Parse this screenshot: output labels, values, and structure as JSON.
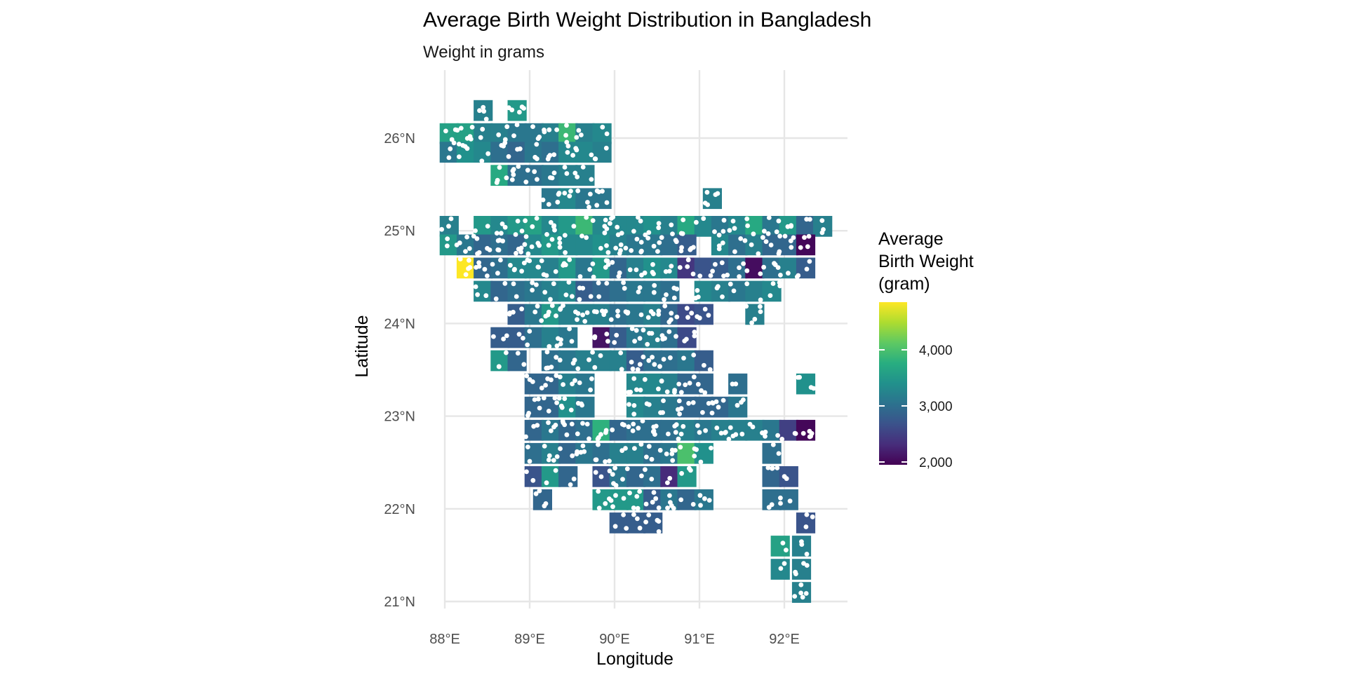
{
  "chart_data": {
    "type": "heatmap",
    "title": "Average Birth Weight Distribution in Bangladesh",
    "subtitle": "Weight in grams",
    "xlabel": "Longitude",
    "ylabel": "Latitude",
    "xlim": [
      88,
      92.6
    ],
    "ylim": [
      21,
      26.5
    ],
    "x_ticks": [
      {
        "value": 88,
        "label": "88°E"
      },
      {
        "value": 89,
        "label": "89°E"
      },
      {
        "value": 90,
        "label": "90°E"
      },
      {
        "value": 91,
        "label": "91°E"
      },
      {
        "value": 92,
        "label": "92°E"
      }
    ],
    "y_ticks": [
      {
        "value": 21,
        "label": "21°N"
      },
      {
        "value": 22,
        "label": "22°N"
      },
      {
        "value": 23,
        "label": "23°N"
      },
      {
        "value": 24,
        "label": "24°N"
      },
      {
        "value": 25,
        "label": "25°N"
      },
      {
        "value": 26,
        "label": "26°N"
      }
    ],
    "grid": true,
    "cell_size_deg": 0.22,
    "colorscale": "viridis",
    "color_range": [
      1950,
      4850
    ],
    "legend": {
      "title": [
        "Average",
        "Birth Weight",
        "(gram)"
      ],
      "ticks": [
        {
          "value": 2000,
          "label": "2,000"
        },
        {
          "value": 3000,
          "label": "3,000"
        },
        {
          "value": 4000,
          "label": "4,000"
        }
      ],
      "position": "right"
    },
    "points_color": "#ffffff",
    "cells": [
      [
        88.05,
        26.05,
        3600
      ],
      [
        88.25,
        26.05,
        3600
      ],
      [
        88.45,
        26.05,
        3200
      ],
      [
        88.65,
        26.05,
        3200
      ],
      [
        88.85,
        26.05,
        3100
      ],
      [
        89.05,
        26.05,
        3100
      ],
      [
        89.25,
        26.05,
        3200
      ],
      [
        89.45,
        26.05,
        3900
      ],
      [
        89.65,
        26.05,
        3200
      ],
      [
        89.85,
        26.05,
        3300
      ],
      [
        88.45,
        26.3,
        3200
      ],
      [
        88.85,
        26.3,
        3500
      ],
      [
        88.05,
        25.85,
        3100
      ],
      [
        88.25,
        25.85,
        3400
      ],
      [
        88.45,
        25.85,
        3300
      ],
      [
        88.65,
        25.85,
        3000
      ],
      [
        88.85,
        25.85,
        2900
      ],
      [
        89.05,
        25.85,
        3100
      ],
      [
        89.25,
        25.85,
        3000
      ],
      [
        89.45,
        25.85,
        3300
      ],
      [
        89.65,
        25.85,
        3300
      ],
      [
        89.85,
        25.85,
        3200
      ],
      [
        88.65,
        25.6,
        3700
      ],
      [
        88.85,
        25.6,
        3000
      ],
      [
        89.05,
        25.6,
        3000
      ],
      [
        89.25,
        25.6,
        3100
      ],
      [
        89.45,
        25.6,
        3200
      ],
      [
        89.65,
        25.6,
        3200
      ],
      [
        89.25,
        25.35,
        3100
      ],
      [
        89.45,
        25.35,
        3300
      ],
      [
        89.65,
        25.35,
        3100
      ],
      [
        89.85,
        25.35,
        3100
      ],
      [
        91.15,
        25.35,
        3200
      ],
      [
        88.05,
        25.05,
        3200
      ],
      [
        88.45,
        25.05,
        3500
      ],
      [
        88.65,
        25.05,
        3300
      ],
      [
        88.85,
        25.05,
        3500
      ],
      [
        89.05,
        25.05,
        3600
      ],
      [
        89.25,
        25.05,
        3300
      ],
      [
        89.45,
        25.05,
        3500
      ],
      [
        89.65,
        25.05,
        3900
      ],
      [
        89.85,
        25.05,
        3300
      ],
      [
        90.05,
        25.05,
        3300
      ],
      [
        90.25,
        25.05,
        3300
      ],
      [
        90.45,
        25.05,
        3400
      ],
      [
        90.65,
        25.05,
        3200
      ],
      [
        90.85,
        25.05,
        3700
      ],
      [
        91.05,
        25.05,
        3300
      ],
      [
        91.25,
        25.05,
        3100
      ],
      [
        91.45,
        25.05,
        3300
      ],
      [
        91.65,
        25.05,
        3700
      ],
      [
        91.85,
        25.05,
        3100
      ],
      [
        92.05,
        25.05,
        3500
      ],
      [
        92.25,
        25.05,
        2900
      ],
      [
        92.45,
        25.05,
        3200
      ],
      [
        88.05,
        24.85,
        3500
      ],
      [
        88.25,
        24.85,
        3100
      ],
      [
        88.45,
        24.85,
        2900
      ],
      [
        88.65,
        24.85,
        3000
      ],
      [
        88.85,
        24.85,
        2900
      ],
      [
        89.05,
        24.85,
        3300
      ],
      [
        89.25,
        24.85,
        3500
      ],
      [
        89.45,
        24.85,
        3300
      ],
      [
        89.65,
        24.85,
        3300
      ],
      [
        89.85,
        24.85,
        3400
      ],
      [
        90.05,
        24.85,
        3200
      ],
      [
        90.25,
        24.85,
        3100
      ],
      [
        90.45,
        24.85,
        3100
      ],
      [
        90.65,
        24.85,
        3000
      ],
      [
        90.85,
        24.85,
        2800
      ],
      [
        91.25,
        24.85,
        3300
      ],
      [
        91.45,
        24.85,
        3000
      ],
      [
        91.65,
        24.85,
        3200
      ],
      [
        91.85,
        24.85,
        2900
      ],
      [
        92.05,
        24.85,
        2900
      ],
      [
        92.25,
        24.85,
        2000
      ],
      [
        88.25,
        24.6,
        4850
      ],
      [
        88.45,
        24.6,
        2900
      ],
      [
        88.65,
        24.6,
        3000
      ],
      [
        88.85,
        24.6,
        3300
      ],
      [
        89.05,
        24.6,
        3300
      ],
      [
        89.25,
        24.6,
        3200
      ],
      [
        89.45,
        24.6,
        3500
      ],
      [
        89.65,
        24.6,
        3100
      ],
      [
        89.85,
        24.6,
        3500
      ],
      [
        90.05,
        24.6,
        2900
      ],
      [
        90.25,
        24.6,
        3200
      ],
      [
        90.45,
        24.6,
        3400
      ],
      [
        90.65,
        24.6,
        3300
      ],
      [
        90.85,
        24.6,
        2400
      ],
      [
        91.05,
        24.6,
        2700
      ],
      [
        91.25,
        24.6,
        2800
      ],
      [
        91.45,
        24.6,
        3000
      ],
      [
        91.65,
        24.6,
        2050
      ],
      [
        91.85,
        24.6,
        3000
      ],
      [
        92.05,
        24.6,
        3200
      ],
      [
        92.25,
        24.6,
        2800
      ],
      [
        88.45,
        24.35,
        3300
      ],
      [
        88.65,
        24.35,
        2900
      ],
      [
        88.85,
        24.35,
        3000
      ],
      [
        89.05,
        24.35,
        3100
      ],
      [
        89.25,
        24.35,
        3200
      ],
      [
        89.45,
        24.35,
        3300
      ],
      [
        89.65,
        24.35,
        2800
      ],
      [
        89.85,
        24.35,
        2900
      ],
      [
        90.05,
        24.35,
        3000
      ],
      [
        90.25,
        24.35,
        3100
      ],
      [
        90.45,
        24.35,
        3100
      ],
      [
        90.65,
        24.35,
        3000
      ],
      [
        91.05,
        24.35,
        3300
      ],
      [
        91.25,
        24.35,
        3200
      ],
      [
        91.45,
        24.35,
        3100
      ],
      [
        91.65,
        24.35,
        3200
      ],
      [
        91.85,
        24.35,
        3300
      ],
      [
        88.85,
        24.1,
        2800
      ],
      [
        89.05,
        24.1,
        3100
      ],
      [
        89.25,
        24.1,
        3500
      ],
      [
        89.45,
        24.1,
        3200
      ],
      [
        89.65,
        24.1,
        3200
      ],
      [
        89.85,
        24.1,
        3200
      ],
      [
        90.05,
        24.1,
        3000
      ],
      [
        90.25,
        24.1,
        3100
      ],
      [
        90.45,
        24.1,
        3200
      ],
      [
        90.65,
        24.1,
        2900
      ],
      [
        90.85,
        24.1,
        2600
      ],
      [
        91.05,
        24.1,
        2700
      ],
      [
        91.65,
        24.1,
        3200
      ],
      [
        88.65,
        23.85,
        2800
      ],
      [
        88.85,
        23.85,
        2800
      ],
      [
        89.05,
        23.85,
        3000
      ],
      [
        89.25,
        23.85,
        3200
      ],
      [
        89.45,
        23.85,
        3100
      ],
      [
        89.85,
        23.85,
        2100
      ],
      [
        90.05,
        23.85,
        2800
      ],
      [
        90.25,
        23.85,
        3100
      ],
      [
        90.45,
        23.85,
        3200
      ],
      [
        90.65,
        23.85,
        3000
      ],
      [
        90.85,
        23.85,
        2600
      ],
      [
        88.65,
        23.6,
        3500
      ],
      [
        88.85,
        23.6,
        2900
      ],
      [
        89.25,
        23.6,
        3000
      ],
      [
        89.45,
        23.6,
        3100
      ],
      [
        89.65,
        23.6,
        3200
      ],
      [
        89.85,
        23.6,
        3200
      ],
      [
        90.05,
        23.6,
        3200
      ],
      [
        90.25,
        23.6,
        2800
      ],
      [
        90.45,
        23.6,
        3000
      ],
      [
        90.65,
        23.6,
        3000
      ],
      [
        90.85,
        23.6,
        3100
      ],
      [
        91.05,
        23.6,
        2800
      ],
      [
        89.05,
        23.35,
        2900
      ],
      [
        89.25,
        23.35,
        2900
      ],
      [
        89.45,
        23.35,
        3200
      ],
      [
        89.65,
        23.35,
        3100
      ],
      [
        90.25,
        23.35,
        3300
      ],
      [
        90.45,
        23.35,
        3300
      ],
      [
        90.65,
        23.35,
        3200
      ],
      [
        90.85,
        23.35,
        2900
      ],
      [
        91.05,
        23.35,
        2900
      ],
      [
        91.45,
        23.35,
        3000
      ],
      [
        92.25,
        23.35,
        3400
      ],
      [
        89.05,
        23.1,
        2900
      ],
      [
        89.25,
        23.1,
        2900
      ],
      [
        89.45,
        23.1,
        3400
      ],
      [
        89.65,
        23.1,
        3100
      ],
      [
        90.25,
        23.1,
        3300
      ],
      [
        90.45,
        23.1,
        3200
      ],
      [
        90.65,
        23.1,
        3100
      ],
      [
        90.85,
        23.1,
        2900
      ],
      [
        91.05,
        23.1,
        2900
      ],
      [
        91.25,
        23.1,
        2900
      ],
      [
        91.45,
        23.1,
        3100
      ],
      [
        89.05,
        22.85,
        2900
      ],
      [
        89.25,
        22.85,
        3100
      ],
      [
        89.45,
        22.85,
        2900
      ],
      [
        89.65,
        22.85,
        3000
      ],
      [
        89.85,
        22.85,
        3800
      ],
      [
        90.05,
        22.85,
        2900
      ],
      [
        90.25,
        22.85,
        3000
      ],
      [
        90.45,
        22.85,
        3000
      ],
      [
        90.65,
        22.85,
        3000
      ],
      [
        90.85,
        22.85,
        3200
      ],
      [
        91.05,
        22.85,
        3100
      ],
      [
        91.25,
        22.85,
        3200
      ],
      [
        91.45,
        22.85,
        3200
      ],
      [
        91.65,
        22.85,
        3200
      ],
      [
        91.85,
        22.85,
        3100
      ],
      [
        92.05,
        22.85,
        2500
      ],
      [
        92.25,
        22.85,
        2000
      ],
      [
        89.05,
        22.6,
        3000
      ],
      [
        89.25,
        22.6,
        3200
      ],
      [
        89.45,
        22.6,
        2900
      ],
      [
        89.65,
        22.6,
        3100
      ],
      [
        89.85,
        22.6,
        3000
      ],
      [
        90.05,
        22.6,
        3200
      ],
      [
        90.25,
        22.6,
        3200
      ],
      [
        90.45,
        22.6,
        3000
      ],
      [
        90.65,
        22.6,
        3100
      ],
      [
        90.85,
        22.6,
        4000
      ],
      [
        91.05,
        22.6,
        3400
      ],
      [
        91.85,
        22.6,
        3000
      ],
      [
        89.05,
        22.35,
        2700
      ],
      [
        89.25,
        22.35,
        3500
      ],
      [
        89.45,
        22.35,
        2900
      ],
      [
        89.85,
        22.35,
        2700
      ],
      [
        90.05,
        22.35,
        3100
      ],
      [
        90.25,
        22.35,
        2900
      ],
      [
        90.45,
        22.35,
        3000
      ],
      [
        90.65,
        22.35,
        2300
      ],
      [
        90.85,
        22.35,
        3500
      ],
      [
        91.85,
        22.35,
        2900
      ],
      [
        92.05,
        22.35,
        2700
      ],
      [
        89.15,
        22.1,
        2900
      ],
      [
        89.85,
        22.1,
        3500
      ],
      [
        90.05,
        22.1,
        3500
      ],
      [
        90.25,
        22.1,
        3500
      ],
      [
        90.45,
        22.1,
        2800
      ],
      [
        90.65,
        22.1,
        3100
      ],
      [
        90.85,
        22.1,
        2900
      ],
      [
        91.05,
        22.1,
        3100
      ],
      [
        91.85,
        22.1,
        3000
      ],
      [
        92.05,
        22.1,
        3000
      ],
      [
        90.05,
        21.85,
        2800
      ],
      [
        90.25,
        21.85,
        2800
      ],
      [
        90.45,
        21.85,
        2800
      ],
      [
        92.25,
        21.85,
        2700
      ],
      [
        91.95,
        21.6,
        3600
      ],
      [
        92.2,
        21.6,
        3200
      ],
      [
        91.95,
        21.35,
        3300
      ],
      [
        92.2,
        21.35,
        3200
      ],
      [
        92.2,
        21.1,
        3200
      ]
    ]
  }
}
